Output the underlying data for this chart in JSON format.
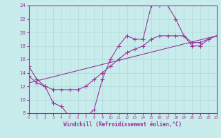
{
  "bg_color": "#c8ecec",
  "line_color": "#993399",
  "grid_color": "#b0d8d8",
  "xlabel": "Windchill (Refroidissement éolien,°C)",
  "xlabel_color": "#993399",
  "tick_color": "#993399",
  "xmin": 0,
  "xmax": 23,
  "ymin": 8,
  "ymax": 24,
  "yticks": [
    8,
    10,
    12,
    14,
    16,
    18,
    20,
    22,
    24
  ],
  "xticks": [
    0,
    1,
    2,
    3,
    4,
    5,
    6,
    7,
    8,
    9,
    10,
    11,
    12,
    13,
    14,
    15,
    16,
    17,
    18,
    19,
    20,
    21,
    22,
    23
  ],
  "line1_x": [
    0,
    1,
    2,
    3,
    4,
    5,
    6,
    7,
    8,
    9,
    10,
    11,
    12,
    13,
    14,
    15,
    16,
    17,
    18,
    19,
    20,
    21,
    22,
    23
  ],
  "line1_y": [
    15,
    13,
    12,
    9.5,
    9,
    7.5,
    7,
    7.5,
    8.5,
    13,
    16,
    18,
    19.5,
    19,
    19,
    24,
    24,
    24,
    22,
    19.5,
    18,
    18,
    19,
    19.5
  ],
  "line2_x": [
    0,
    1,
    2,
    3,
    4,
    5,
    6,
    7,
    8,
    9,
    10,
    11,
    12,
    13,
    14,
    15,
    16,
    17,
    18,
    19,
    20,
    21,
    22,
    23
  ],
  "line2_y": [
    13.5,
    12.5,
    12,
    11.5,
    11.5,
    11.5,
    11.5,
    12,
    13,
    14,
    15,
    16,
    17,
    17.5,
    18,
    19,
    19.5,
    19.5,
    19.5,
    19.5,
    18.5,
    18.5,
    19,
    19.5
  ],
  "line3_x": [
    0,
    23
  ],
  "line3_y": [
    12.5,
    19.5
  ]
}
